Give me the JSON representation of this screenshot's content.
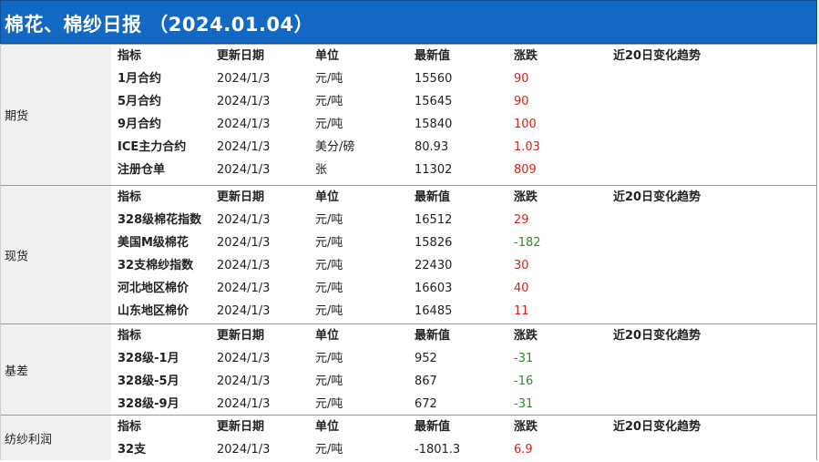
{
  "title": "棉花、棉纱日报 （2024.01.04）",
  "columns": [
    "指标",
    "更新日期",
    "单位",
    "最新值",
    "涨跌",
    "近20日变化趋势"
  ],
  "sections": [
    {
      "label": "期货",
      "rows": [
        {
          "name": "1月合约",
          "date": "2024/1/3",
          "unit": "元/吨",
          "value": "15560",
          "change": "90",
          "dir": "up"
        },
        {
          "name": "5月合约",
          "date": "2024/1/3",
          "unit": "元/吨",
          "value": "15645",
          "change": "90",
          "dir": "up"
        },
        {
          "name": "9月合约",
          "date": "2024/1/3",
          "unit": "元/吨",
          "value": "15840",
          "change": "100",
          "dir": "up"
        },
        {
          "name": "ICE主力合约",
          "date": "2024/1/3",
          "unit": "美分/磅",
          "value": "80.93",
          "change": "1.03",
          "dir": "up"
        },
        {
          "name": "注册仓单",
          "date": "2024/1/3",
          "unit": "张",
          "value": "11302",
          "change": "809",
          "dir": "up"
        }
      ]
    },
    {
      "label": "现货",
      "rows": [
        {
          "name": "328级棉花指数",
          "date": "2024/1/3",
          "unit": "元/吨",
          "value": "16512",
          "change": "29",
          "dir": "up"
        },
        {
          "name": "美国M级棉花",
          "date": "2024/1/3",
          "unit": "元/吨",
          "value": "15826",
          "change": "-182",
          "dir": "down"
        },
        {
          "name": "32支棉纱指数",
          "date": "2024/1/3",
          "unit": "元/吨",
          "value": "22430",
          "change": "30",
          "dir": "up"
        },
        {
          "name": "河北地区棉价",
          "date": "2024/1/3",
          "unit": "元/吨",
          "value": "16603",
          "change": "40",
          "dir": "up"
        },
        {
          "name": "山东地区棉价",
          "date": "2024/1/3",
          "unit": "元/吨",
          "value": "16485",
          "change": "11",
          "dir": "up"
        }
      ]
    },
    {
      "label": "基差",
      "rows": [
        {
          "name": "328级-1月",
          "date": "2024/1/3",
          "unit": "元/吨",
          "value": "952",
          "change": "-31",
          "dir": "down"
        },
        {
          "name": "328级-5月",
          "date": "2024/1/3",
          "unit": "元/吨",
          "value": "867",
          "change": "-16",
          "dir": "down"
        },
        {
          "name": "328级-9月",
          "date": "2024/1/3",
          "unit": "元/吨",
          "value": "672",
          "change": "-31",
          "dir": "down"
        }
      ]
    },
    {
      "label": "纺纱利润",
      "rows": [
        {
          "name": "32支",
          "date": "2024/1/3",
          "unit": "元/吨",
          "value": "-1801.3",
          "change": "6.9",
          "dir": "up"
        }
      ]
    }
  ]
}
